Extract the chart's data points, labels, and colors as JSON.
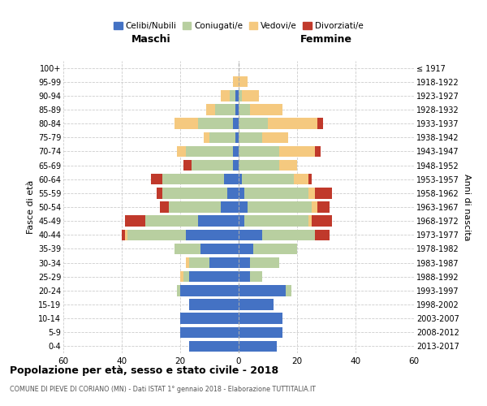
{
  "age_groups": [
    "0-4",
    "5-9",
    "10-14",
    "15-19",
    "20-24",
    "25-29",
    "30-34",
    "35-39",
    "40-44",
    "45-49",
    "50-54",
    "55-59",
    "60-64",
    "65-69",
    "70-74",
    "75-79",
    "80-84",
    "85-89",
    "90-94",
    "95-99",
    "100+"
  ],
  "birth_years": [
    "2013-2017",
    "2008-2012",
    "2003-2007",
    "1998-2002",
    "1993-1997",
    "1988-1992",
    "1983-1987",
    "1978-1982",
    "1973-1977",
    "1968-1972",
    "1963-1967",
    "1958-1962",
    "1953-1957",
    "1948-1952",
    "1943-1947",
    "1938-1942",
    "1933-1937",
    "1928-1932",
    "1923-1927",
    "1918-1922",
    "≤ 1917"
  ],
  "maschi": {
    "celibi": [
      17,
      20,
      20,
      17,
      20,
      17,
      10,
      13,
      18,
      14,
      6,
      4,
      5,
      2,
      2,
      1,
      2,
      1,
      1,
      0,
      0
    ],
    "coniugati": [
      0,
      0,
      0,
      0,
      1,
      2,
      7,
      9,
      20,
      18,
      18,
      22,
      21,
      14,
      16,
      9,
      12,
      7,
      2,
      0,
      0
    ],
    "vedovi": [
      0,
      0,
      0,
      0,
      0,
      1,
      1,
      0,
      1,
      0,
      0,
      0,
      0,
      0,
      3,
      2,
      8,
      3,
      3,
      2,
      0
    ],
    "divorziati": [
      0,
      0,
      0,
      0,
      0,
      0,
      0,
      0,
      1,
      7,
      3,
      2,
      4,
      3,
      0,
      0,
      0,
      0,
      0,
      0,
      0
    ]
  },
  "femmine": {
    "nubili": [
      13,
      15,
      15,
      12,
      16,
      4,
      4,
      5,
      8,
      2,
      3,
      2,
      1,
      0,
      0,
      0,
      0,
      0,
      0,
      0,
      0
    ],
    "coniugate": [
      0,
      0,
      0,
      0,
      2,
      4,
      10,
      15,
      18,
      22,
      22,
      22,
      18,
      14,
      14,
      8,
      10,
      4,
      1,
      0,
      0
    ],
    "vedove": [
      0,
      0,
      0,
      0,
      0,
      0,
      0,
      0,
      0,
      1,
      2,
      2,
      5,
      6,
      12,
      9,
      17,
      11,
      6,
      3,
      0
    ],
    "divorziate": [
      0,
      0,
      0,
      0,
      0,
      0,
      0,
      0,
      5,
      7,
      4,
      6,
      1,
      0,
      2,
      0,
      2,
      0,
      0,
      0,
      0
    ]
  },
  "colors": {
    "celibi_nubili": "#4472c4",
    "coniugati": "#b8cfa0",
    "vedovi": "#f5c97f",
    "divorziati": "#c0392b"
  },
  "title": "Popolazione per età, sesso e stato civile - 2018",
  "subtitle": "COMUNE DI PIEVE DI CORIANO (MN) - Dati ISTAT 1° gennaio 2018 - Elaborazione TUTTITALIA.IT",
  "xlabel_left": "Maschi",
  "xlabel_right": "Femmine",
  "ylabel_left": "Fasce di età",
  "ylabel_right": "Anni di nascita",
  "xlim": 60,
  "legend_labels": [
    "Celibi/Nubili",
    "Coniugati/e",
    "Vedovi/e",
    "Divorziati/e"
  ]
}
